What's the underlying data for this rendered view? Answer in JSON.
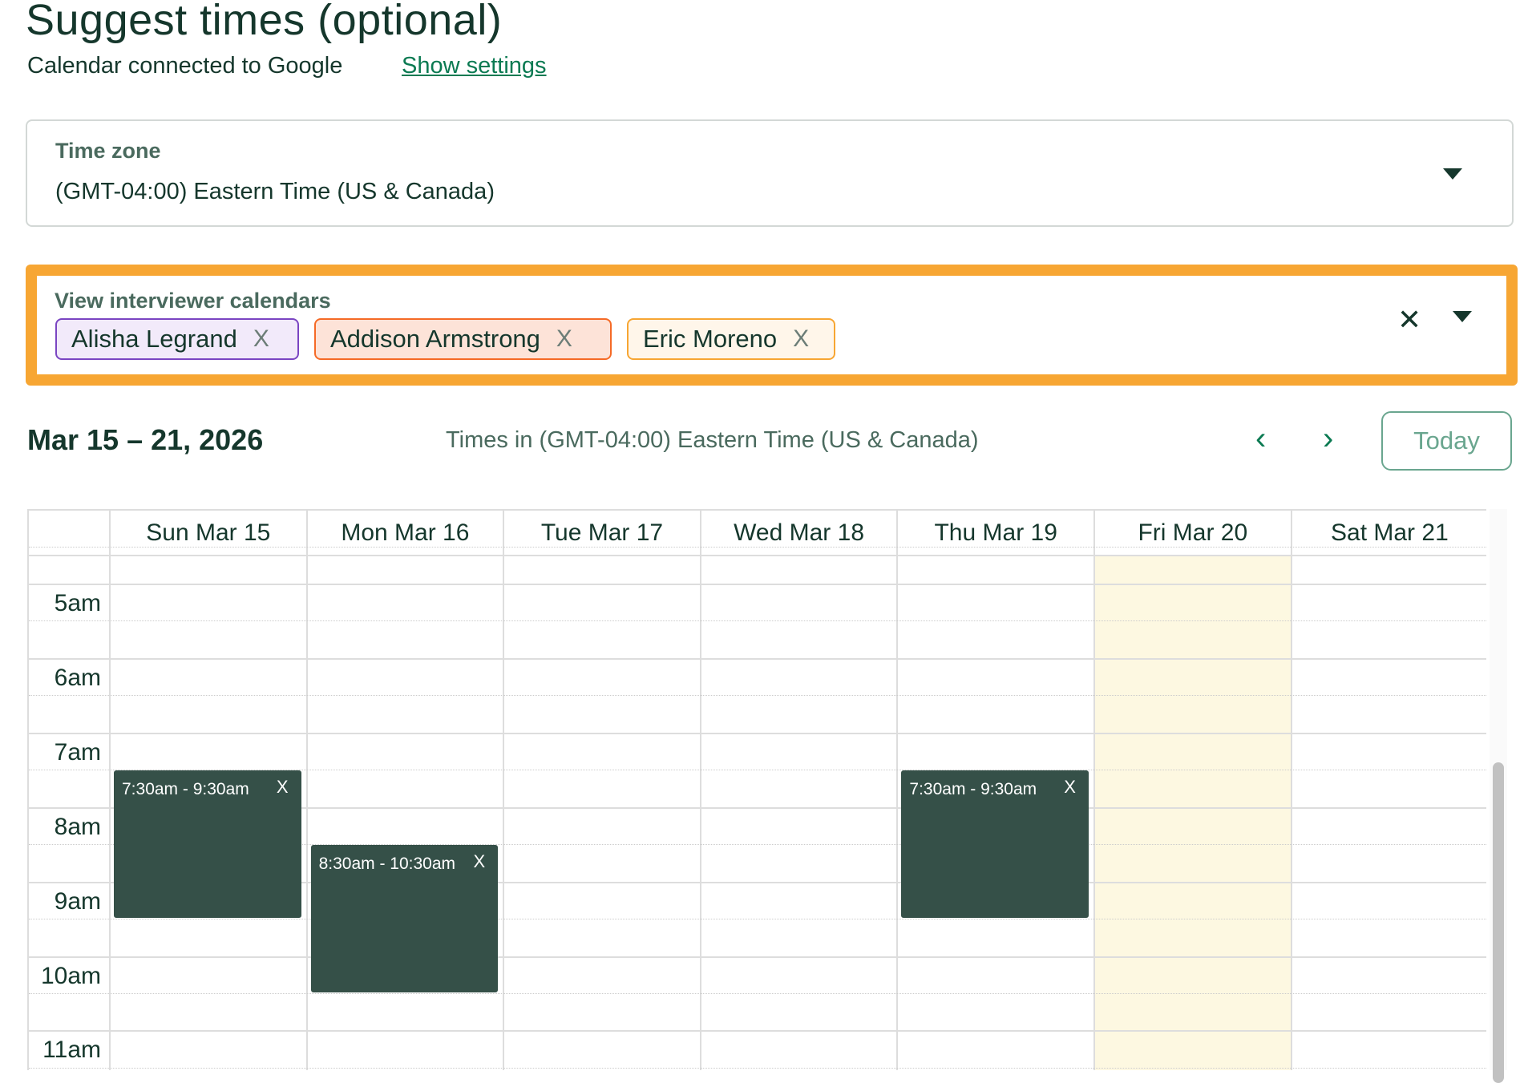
{
  "header": {
    "title": "Suggest times (optional)",
    "subtitle": "Calendar connected to Google",
    "settings_link": "Show settings"
  },
  "timezone": {
    "label": "Time zone",
    "value": "(GMT-04:00) Eastern Time (US & Canada)"
  },
  "interviewers": {
    "label": "View interviewer calendars",
    "chips": [
      {
        "name": "Alisha Legrand",
        "bg": "#f2eafa",
        "border": "#7a45c2"
      },
      {
        "name": "Addison Armstrong",
        "bg": "#fde3d8",
        "border": "#f56a26"
      },
      {
        "name": "Eric Moreno",
        "bg": "#fff6ea",
        "border": "#f7a633"
      }
    ],
    "remove_icon": "X"
  },
  "calendar": {
    "range": "Mar 15 – 21, 2026",
    "tz_note": "Times in (GMT-04:00) Eastern Time (US & Canada)",
    "today_label": "Today",
    "prev": "‹",
    "next": "›",
    "days": [
      "Sun Mar 15",
      "Mon Mar 16",
      "Tue Mar 17",
      "Wed Mar 18",
      "Thu Mar 19",
      "Fri Mar 20",
      "Sat Mar 21"
    ],
    "today_index": 5,
    "today_color": "#fdf8e1",
    "hours": [
      "5am",
      "6am",
      "7am",
      "8am",
      "9am",
      "10am",
      "11am"
    ],
    "events": [
      {
        "day": 0,
        "start": 7.5,
        "end": 9.5,
        "label": "7:30am - 9:30am"
      },
      {
        "day": 1,
        "start": 8.5,
        "end": 10.5,
        "label": "8:30am - 10:30am"
      },
      {
        "day": 4,
        "start": 7.5,
        "end": 9.5,
        "label": "7:30am - 9:30am"
      }
    ],
    "event_remove": "X",
    "event_color": "#355048"
  }
}
